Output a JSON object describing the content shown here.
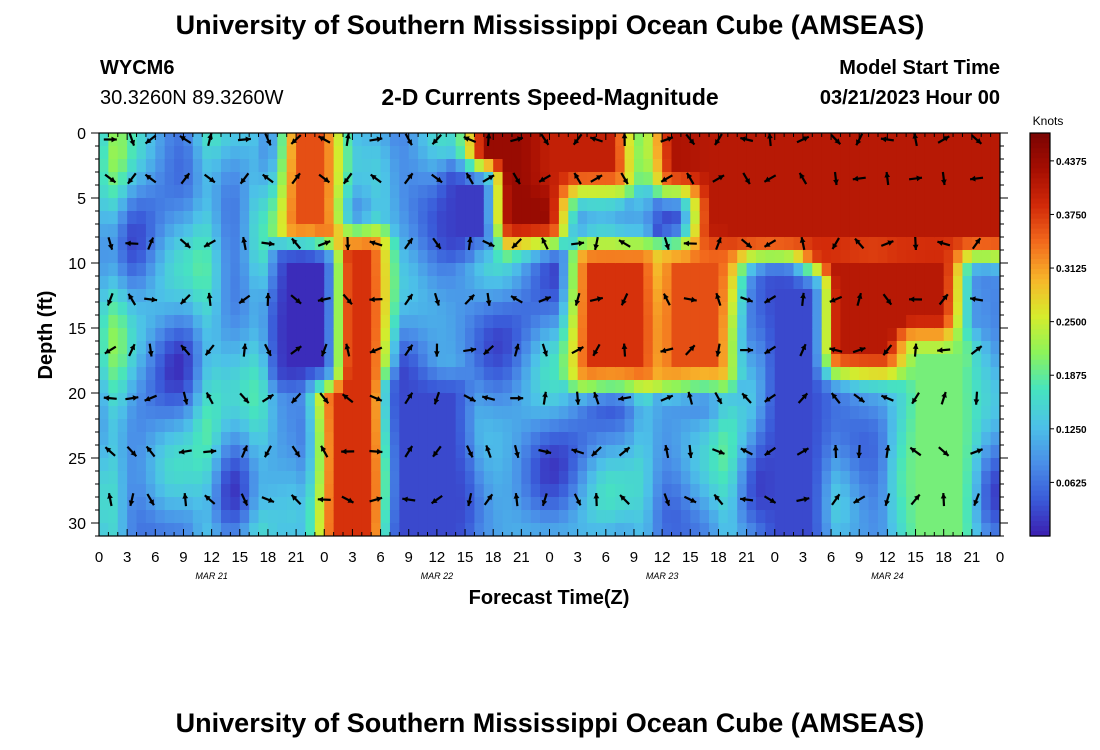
{
  "header": {
    "title": "University of Southern Mississippi Ocean Cube (AMSEAS)",
    "footer_title": "University of Southern Mississippi Ocean Cube (AMSEAS)",
    "station_id": "WYCM6",
    "coordinates": "30.3260N  89.3260W",
    "subtitle": "2-D Currents Speed-Magnitude",
    "model_start_label": "Model Start Time",
    "model_start_value": "03/21/2023 Hour 00"
  },
  "colors": {
    "scale": [
      "#3b1eb0",
      "#3a5bd9",
      "#4a8fe8",
      "#4cc1e8",
      "#46e4bf",
      "#8cf35a",
      "#d6ec2c",
      "#f7b52a",
      "#f36b1d",
      "#d22a09",
      "#a50e02",
      "#7a0402"
    ]
  },
  "chart_data": {
    "type": "heatmap",
    "title": "2-D Currents Speed-Magnitude",
    "xlabel": "Forecast Time(Z)",
    "ylabel": "Depth (ft)",
    "x_tick_labels": [
      "0",
      "3",
      "6",
      "9",
      "12",
      "15",
      "18",
      "21",
      "0",
      "3",
      "6",
      "9",
      "12",
      "15",
      "18",
      "21",
      "0",
      "3",
      "6",
      "9",
      "12",
      "15",
      "18",
      "21",
      "0",
      "3",
      "6",
      "9",
      "12",
      "15",
      "18",
      "21",
      "0"
    ],
    "x_hours_range": [
      0,
      96
    ],
    "day_labels": [
      {
        "label": "MAR 21",
        "hour": 12
      },
      {
        "label": "MAR 22",
        "hour": 36
      },
      {
        "label": "MAR 23",
        "hour": 60
      },
      {
        "label": "MAR 24",
        "hour": 84
      }
    ],
    "y_ticks": [
      0,
      5,
      10,
      15,
      20,
      25,
      30
    ],
    "y_range": [
      0,
      31
    ],
    "colorbar": {
      "label": "Knots",
      "range": [
        0,
        0.47
      ],
      "ticks": [
        "0.4375",
        "0.3750",
        "0.3125",
        "0.2500",
        "0.1875",
        "0.1250",
        "0.0625"
      ],
      "tick_values": [
        0.4375,
        0.375,
        0.3125,
        0.25,
        0.1875,
        0.125,
        0.0625
      ]
    },
    "arrow_rows_depth_ft": [
      0.5,
      3.5,
      8.5,
      12.8,
      16.7,
      20.4,
      24.5,
      28.2
    ],
    "arrow_cols_hour": [
      1.2,
      3.5,
      5.5,
      9.2,
      11.8,
      15.5,
      18,
      21,
      24,
      26.5,
      29.5,
      33,
      36,
      39.5,
      41.5,
      44.5,
      47.5,
      51,
      53,
      56,
      60.5,
      63,
      66,
      69,
      71.5,
      75,
      78.5,
      81,
      84,
      87,
      90,
      93.5
    ],
    "high_zones": [
      {
        "hours": [
          21,
          24
        ],
        "depth": [
          0,
          7
        ],
        "speed": 0.36
      },
      {
        "hours": [
          25,
          29
        ],
        "depth": [
          9,
          31
        ],
        "speed": 0.38
      },
      {
        "hours": [
          41,
          48
        ],
        "depth": [
          0,
          7
        ],
        "speed": 0.44
      },
      {
        "hours": [
          48,
          55
        ],
        "depth": [
          0,
          3
        ],
        "speed": 0.4
      },
      {
        "hours": [
          61,
          71
        ],
        "depth": [
          0,
          3
        ],
        "speed": 0.42
      },
      {
        "hours": [
          65,
          96
        ],
        "depth": [
          0,
          8
        ],
        "speed": 0.41
      },
      {
        "hours": [
          52,
          58
        ],
        "depth": [
          10,
          18
        ],
        "speed": 0.38
      },
      {
        "hours": [
          61,
          66
        ],
        "depth": [
          10,
          18
        ],
        "speed": 0.36
      },
      {
        "hours": [
          77,
          90
        ],
        "depth": [
          10,
          17
        ],
        "speed": 0.41
      },
      {
        "hours": [
          87,
          92
        ],
        "depth": [
          17,
          31
        ],
        "speed": 0.2
      }
    ],
    "low_zones": [
      {
        "hours": [
          20,
          24
        ],
        "depth": [
          10,
          18
        ],
        "speed": 0.01
      },
      {
        "hours": [
          38,
          41
        ],
        "depth": [
          4,
          8
        ],
        "speed": 0.02
      },
      {
        "hours": [
          72,
          76
        ],
        "depth": [
          12,
          31
        ],
        "speed": 0.03
      },
      {
        "hours": [
          32,
          38
        ],
        "depth": [
          20,
          31
        ],
        "speed": 0.03
      }
    ]
  }
}
